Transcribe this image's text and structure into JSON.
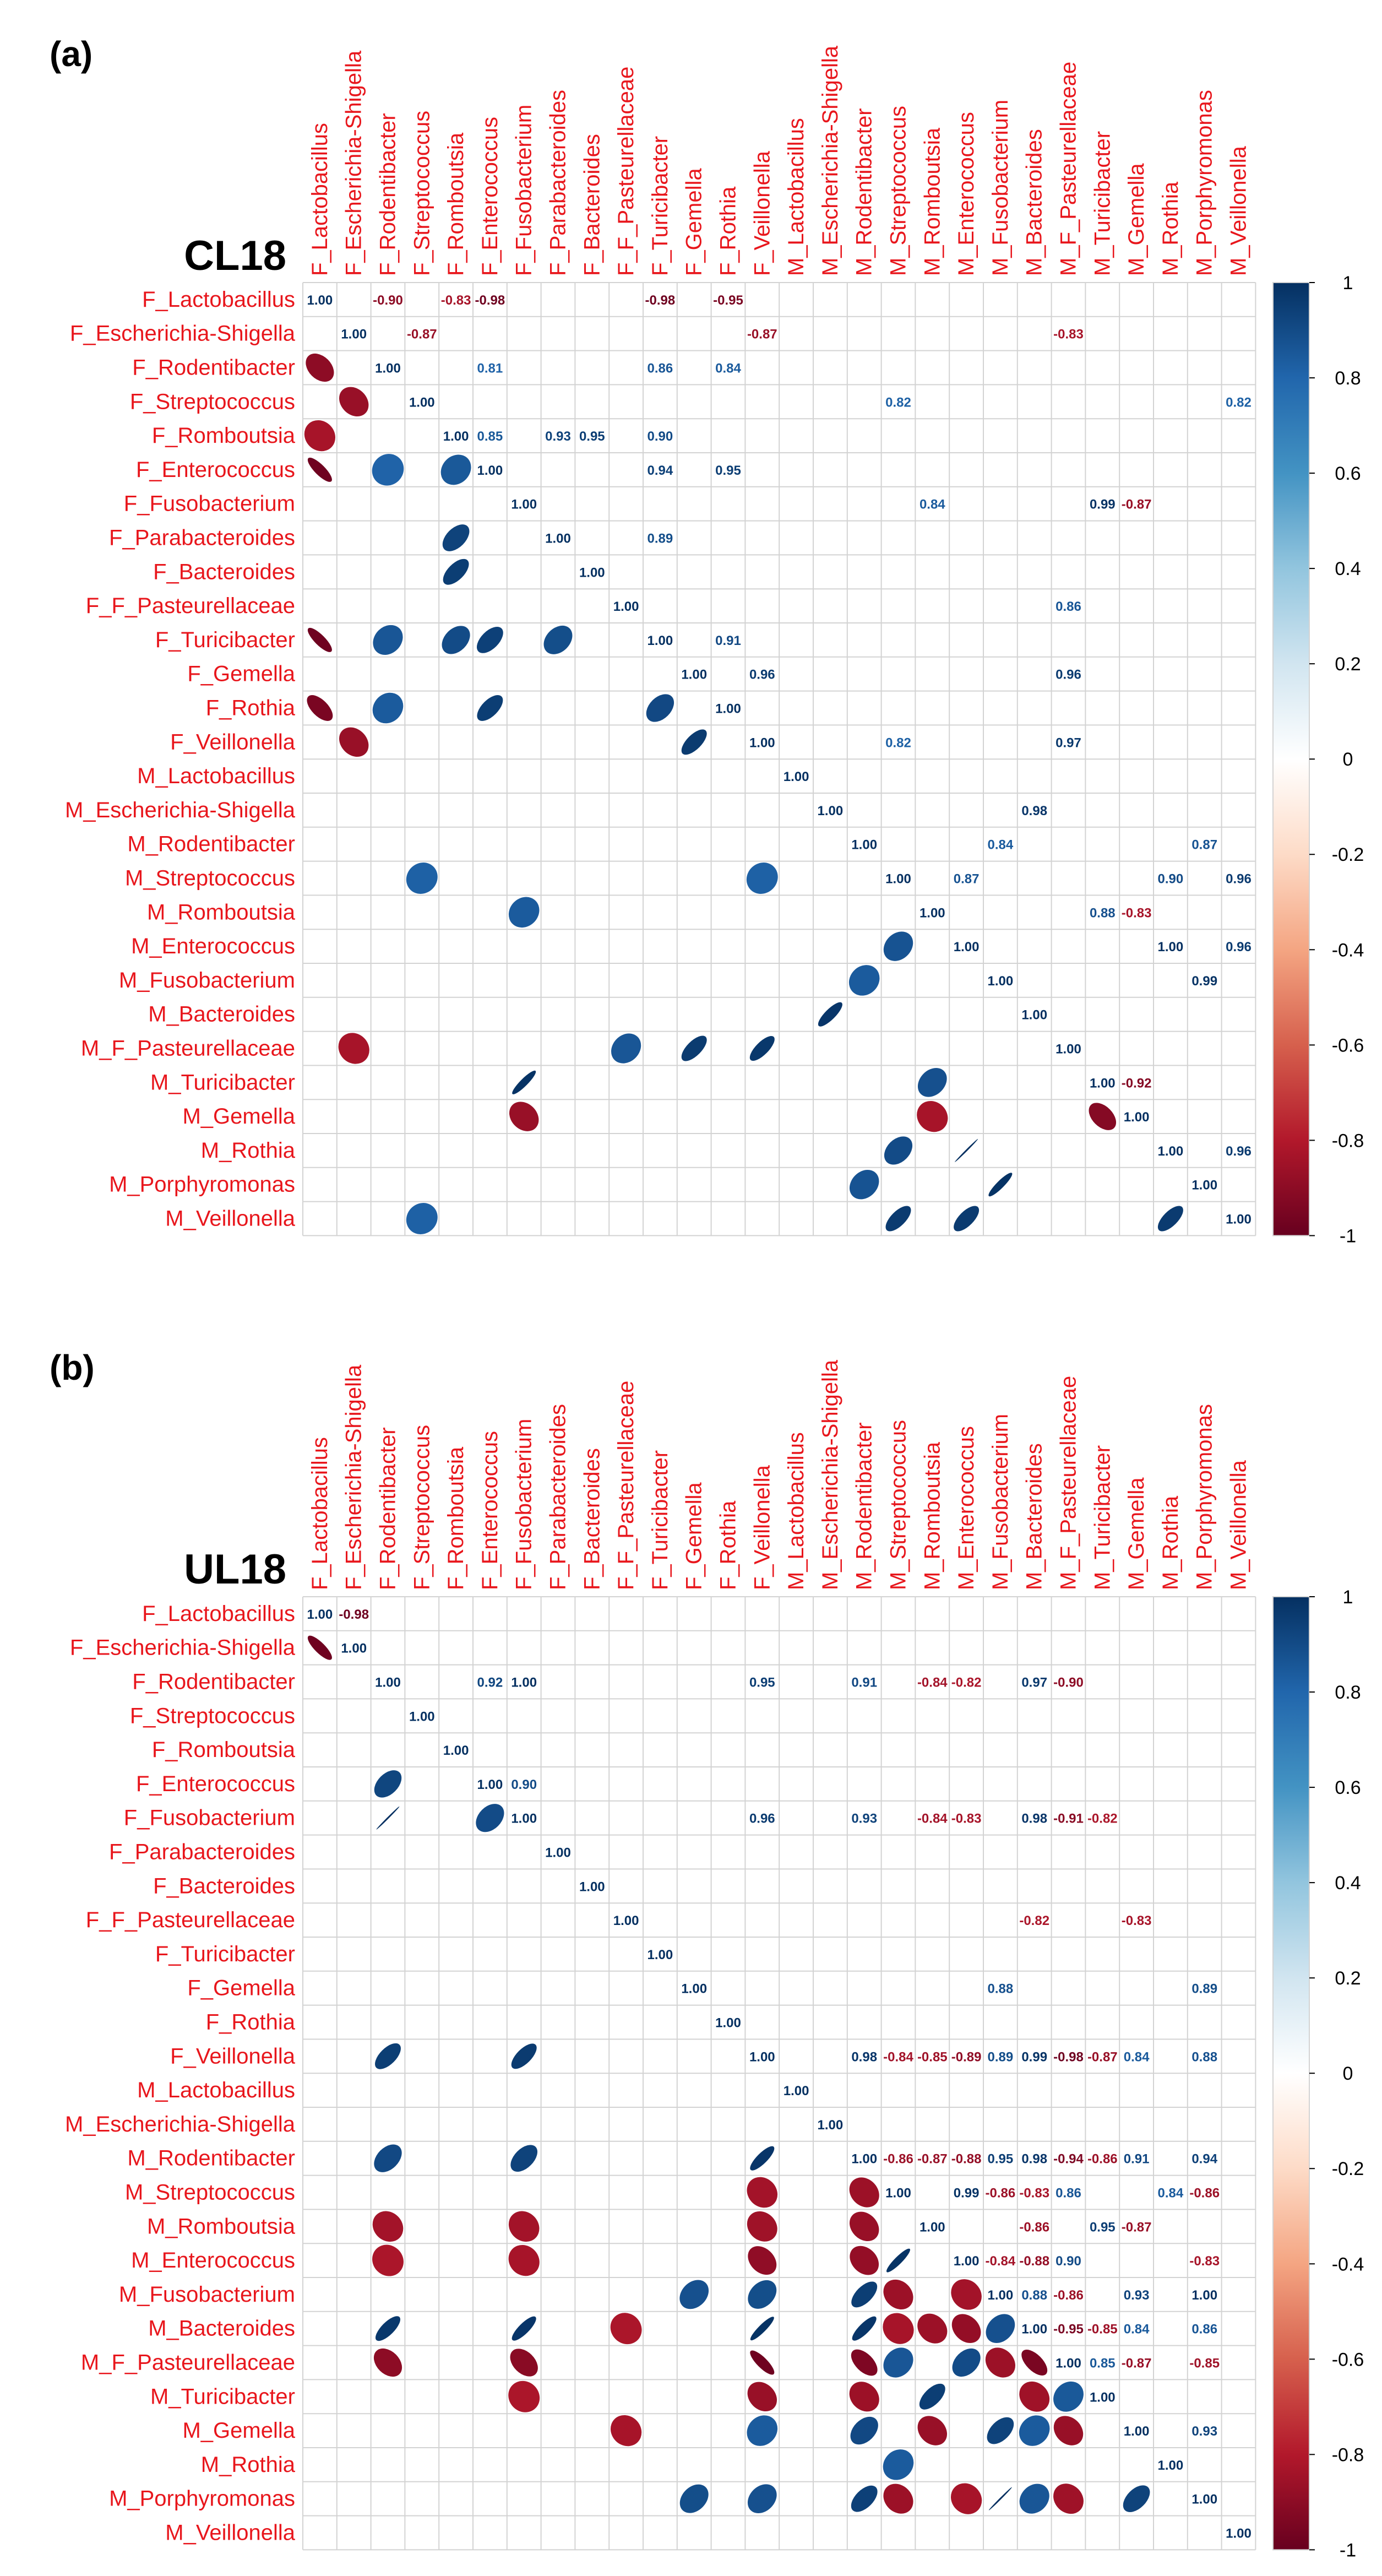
{
  "chart_data": [
    {
      "type": "heatmap",
      "panel_label": "(a)",
      "title": "CL18",
      "labels": [
        "F_Lactobacillus",
        "F_Escherichia-Shigella",
        "F_Rodentibacter",
        "F_Streptococcus",
        "F_Romboutsia",
        "F_Enterococcus",
        "F_Fusobacterium",
        "F_Parabacteroides",
        "F_Bacteroides",
        "F_F_Pasteurellaceae",
        "F_Turicibacter",
        "F_Gemella",
        "F_Rothia",
        "F_Veillonella",
        "M_Lactobacillus",
        "M_Escherichia-Shigella",
        "M_Rodentibacter",
        "M_Streptococcus",
        "M_Romboutsia",
        "M_Enterococcus",
        "M_Fusobacterium",
        "M_Bacteroides",
        "M_F_Pasteurellaceae",
        "M_Turicibacter",
        "M_Gemella",
        "M_Rothia",
        "M_Porphyromonas",
        "M_Veillonella"
      ],
      "colorbar": {
        "ticks": [
          "1",
          "0.8",
          "0.6",
          "0.4",
          "0.2",
          "0",
          "-0.2",
          "-0.4",
          "-0.6",
          "-0.8",
          "-1"
        ],
        "range": [
          -1,
          1
        ],
        "low_color": "#67001f",
        "mid_color": "#ffffff",
        "high_color": "#053061"
      },
      "cells": [
        [
          0,
          0,
          1.0
        ],
        [
          1,
          1,
          1.0
        ],
        [
          2,
          2,
          1.0
        ],
        [
          3,
          3,
          1.0
        ],
        [
          4,
          4,
          1.0
        ],
        [
          5,
          5,
          1.0
        ],
        [
          6,
          6,
          1.0
        ],
        [
          7,
          7,
          1.0
        ],
        [
          8,
          8,
          1.0
        ],
        [
          9,
          9,
          1.0
        ],
        [
          10,
          10,
          1.0
        ],
        [
          11,
          11,
          1.0
        ],
        [
          12,
          12,
          1.0
        ],
        [
          13,
          13,
          1.0
        ],
        [
          14,
          14,
          1.0
        ],
        [
          15,
          15,
          1.0
        ],
        [
          16,
          16,
          1.0
        ],
        [
          17,
          17,
          1.0
        ],
        [
          18,
          18,
          1.0
        ],
        [
          19,
          19,
          1.0
        ],
        [
          20,
          20,
          1.0
        ],
        [
          21,
          21,
          1.0
        ],
        [
          22,
          22,
          1.0
        ],
        [
          23,
          23,
          1.0
        ],
        [
          24,
          24,
          1.0
        ],
        [
          25,
          25,
          1.0
        ],
        [
          26,
          26,
          1.0
        ],
        [
          27,
          27,
          1.0
        ],
        [
          2,
          0,
          -0.9
        ],
        [
          4,
          0,
          -0.83
        ],
        [
          5,
          0,
          -0.98
        ],
        [
          10,
          0,
          -0.98
        ],
        [
          12,
          0,
          -0.95
        ],
        [
          3,
          1,
          -0.87
        ],
        [
          13,
          1,
          -0.87
        ],
        [
          22,
          1,
          -0.83
        ],
        [
          5,
          2,
          0.81
        ],
        [
          10,
          2,
          0.86
        ],
        [
          12,
          2,
          0.84
        ],
        [
          17,
          3,
          0.82
        ],
        [
          27,
          3,
          0.82
        ],
        [
          5,
          4,
          0.85
        ],
        [
          7,
          4,
          0.93
        ],
        [
          8,
          4,
          0.95
        ],
        [
          10,
          4,
          0.9
        ],
        [
          10,
          5,
          0.94
        ],
        [
          12,
          5,
          0.95
        ],
        [
          18,
          6,
          0.84
        ],
        [
          23,
          6,
          0.99
        ],
        [
          24,
          6,
          -0.87
        ],
        [
          10,
          7,
          0.89
        ],
        [
          22,
          9,
          0.86
        ],
        [
          12,
          10,
          0.91
        ],
        [
          13,
          11,
          0.96
        ],
        [
          22,
          11,
          0.96
        ],
        [
          17,
          13,
          0.82
        ],
        [
          22,
          13,
          0.97
        ],
        [
          21,
          15,
          0.98
        ],
        [
          20,
          16,
          0.84
        ],
        [
          26,
          16,
          0.87
        ],
        [
          19,
          17,
          0.87
        ],
        [
          25,
          17,
          0.9
        ],
        [
          27,
          17,
          0.96
        ],
        [
          23,
          18,
          0.88
        ],
        [
          24,
          18,
          -0.83
        ],
        [
          25,
          19,
          1.0
        ],
        [
          27,
          19,
          0.96
        ],
        [
          26,
          20,
          0.99
        ],
        [
          24,
          23,
          -0.92
        ],
        [
          27,
          25,
          0.96
        ]
      ]
    },
    {
      "type": "heatmap",
      "panel_label": "(b)",
      "title": "UL18",
      "labels": [
        "F_Lactobacillus",
        "F_Escherichia-Shigella",
        "F_Rodentibacter",
        "F_Streptococcus",
        "F_Romboutsia",
        "F_Enterococcus",
        "F_Fusobacterium",
        "F_Parabacteroides",
        "F_Bacteroides",
        "F_F_Pasteurellaceae",
        "F_Turicibacter",
        "F_Gemella",
        "F_Rothia",
        "F_Veillonella",
        "M_Lactobacillus",
        "M_Escherichia-Shigella",
        "M_Rodentibacter",
        "M_Streptococcus",
        "M_Romboutsia",
        "M_Enterococcus",
        "M_Fusobacterium",
        "M_Bacteroides",
        "M_F_Pasteurellaceae",
        "M_Turicibacter",
        "M_Gemella",
        "M_Rothia",
        "M_Porphyromonas",
        "M_Veillonella"
      ],
      "colorbar": {
        "ticks": [
          "1",
          "0.8",
          "0.6",
          "0.4",
          "0.2",
          "0",
          "-0.2",
          "-0.4",
          "-0.6",
          "-0.8",
          "-1"
        ],
        "range": [
          -1,
          1
        ],
        "low_color": "#67001f",
        "mid_color": "#ffffff",
        "high_color": "#053061"
      },
      "cells": [
        [
          0,
          0,
          1.0
        ],
        [
          1,
          1,
          1.0
        ],
        [
          2,
          2,
          1.0
        ],
        [
          3,
          3,
          1.0
        ],
        [
          4,
          4,
          1.0
        ],
        [
          5,
          5,
          1.0
        ],
        [
          6,
          6,
          1.0
        ],
        [
          7,
          7,
          1.0
        ],
        [
          8,
          8,
          1.0
        ],
        [
          9,
          9,
          1.0
        ],
        [
          10,
          10,
          1.0
        ],
        [
          11,
          11,
          1.0
        ],
        [
          12,
          12,
          1.0
        ],
        [
          13,
          13,
          1.0
        ],
        [
          14,
          14,
          1.0
        ],
        [
          15,
          15,
          1.0
        ],
        [
          16,
          16,
          1.0
        ],
        [
          17,
          17,
          1.0
        ],
        [
          18,
          18,
          1.0
        ],
        [
          19,
          19,
          1.0
        ],
        [
          20,
          20,
          1.0
        ],
        [
          21,
          21,
          1.0
        ],
        [
          22,
          22,
          1.0
        ],
        [
          23,
          23,
          1.0
        ],
        [
          24,
          24,
          1.0
        ],
        [
          25,
          25,
          1.0
        ],
        [
          26,
          26,
          1.0
        ],
        [
          27,
          27,
          1.0
        ],
        [
          1,
          0,
          -0.98
        ],
        [
          5,
          2,
          0.92
        ],
        [
          6,
          2,
          1.0
        ],
        [
          13,
          2,
          0.95
        ],
        [
          16,
          2,
          0.91
        ],
        [
          18,
          2,
          -0.84
        ],
        [
          19,
          2,
          -0.82
        ],
        [
          21,
          2,
          0.97
        ],
        [
          22,
          2,
          -0.9
        ],
        [
          6,
          5,
          0.9
        ],
        [
          13,
          6,
          0.96
        ],
        [
          16,
          6,
          0.93
        ],
        [
          18,
          6,
          -0.84
        ],
        [
          19,
          6,
          -0.83
        ],
        [
          21,
          6,
          0.98
        ],
        [
          22,
          6,
          -0.91
        ],
        [
          23,
          6,
          -0.82
        ],
        [
          21,
          9,
          -0.82
        ],
        [
          24,
          9,
          -0.83
        ],
        [
          20,
          11,
          0.88
        ],
        [
          26,
          11,
          0.89
        ],
        [
          16,
          13,
          0.98
        ],
        [
          17,
          13,
          -0.84
        ],
        [
          18,
          13,
          -0.85
        ],
        [
          19,
          13,
          -0.89
        ],
        [
          20,
          13,
          0.89
        ],
        [
          21,
          13,
          0.99
        ],
        [
          22,
          13,
          -0.98
        ],
        [
          23,
          13,
          -0.87
        ],
        [
          24,
          13,
          0.84
        ],
        [
          26,
          13,
          0.88
        ],
        [
          17,
          16,
          -0.86
        ],
        [
          18,
          16,
          -0.87
        ],
        [
          19,
          16,
          -0.88
        ],
        [
          20,
          16,
          0.95
        ],
        [
          21,
          16,
          0.98
        ],
        [
          22,
          16,
          -0.94
        ],
        [
          23,
          16,
          -0.86
        ],
        [
          24,
          16,
          0.91
        ],
        [
          26,
          16,
          0.94
        ],
        [
          19,
          17,
          0.99
        ],
        [
          20,
          17,
          -0.86
        ],
        [
          21,
          17,
          -0.83
        ],
        [
          22,
          17,
          0.86
        ],
        [
          25,
          17,
          0.84
        ],
        [
          26,
          17,
          -0.86
        ],
        [
          21,
          18,
          -0.86
        ],
        [
          23,
          18,
          0.95
        ],
        [
          24,
          18,
          -0.87
        ],
        [
          20,
          19,
          -0.84
        ],
        [
          21,
          19,
          -0.88
        ],
        [
          22,
          19,
          0.9
        ],
        [
          26,
          19,
          -0.83
        ],
        [
          21,
          20,
          0.88
        ],
        [
          22,
          20,
          -0.86
        ],
        [
          24,
          20,
          0.93
        ],
        [
          26,
          20,
          1.0
        ],
        [
          22,
          21,
          -0.95
        ],
        [
          23,
          21,
          -0.85
        ],
        [
          24,
          21,
          0.84
        ],
        [
          26,
          21,
          0.86
        ],
        [
          23,
          22,
          0.85
        ],
        [
          24,
          22,
          -0.87
        ],
        [
          26,
          22,
          -0.85
        ],
        [
          26,
          24,
          0.93
        ]
      ]
    }
  ]
}
